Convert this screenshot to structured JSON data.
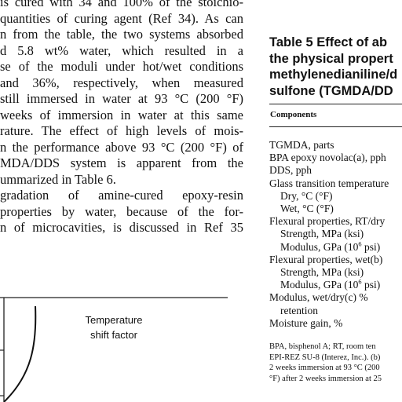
{
  "body_text": {
    "lines": [
      {
        "text": "is cured with 34 and 100% of the stoichio-",
        "justify": true
      },
      {
        "text": "quantities of curing agent (Ref 34). As can",
        "justify": true
      },
      {
        "text": "n from the table, the two systems absorbed",
        "justify": true
      },
      {
        "text": "d 5.8 wt% water, which resulted in a",
        "justify": true
      },
      {
        "text": "se of the moduli under hot/wet conditions",
        "justify": true
      },
      {
        "text": " and 36%, respectively, when measured",
        "justify": true
      },
      {
        "text": "still immersed in water at 93 °C (200 °F)",
        "justify": true
      },
      {
        "text": " weeks of immersion in water at this same",
        "justify": true
      },
      {
        "text": "rature. The effect of high levels of mois-",
        "justify": true
      },
      {
        "text": "n the performance above 93 °C (200 °F) of",
        "justify": true
      },
      {
        "text": "MDA/DDS system is apparent from the",
        "justify": true
      },
      {
        "text": "ummarized in Table 6.",
        "justify": false
      },
      {
        "text": "gradation of amine-cured epoxy-resin",
        "justify": true
      },
      {
        "text": " properties by water, because of the for-",
        "justify": true
      },
      {
        "text": "n of microcavities, is discussed in Ref 35",
        "justify": true
      }
    ]
  },
  "table": {
    "title_lines": [
      "Table 5   Effect of ab",
      "the physical propert",
      "methylenedianiline/d",
      "sulfone (TGMDA/DD"
    ],
    "header": "Components",
    "rows": [
      {
        "text": "TGMDA, parts",
        "indent": false
      },
      {
        "text": "BPA epoxy novolac(a), pph",
        "indent": false
      },
      {
        "text": "DDS, pph",
        "indent": false
      },
      {
        "text": "Glass transition temperature",
        "indent": false
      },
      {
        "text": "Dry, °C (°F)",
        "indent": true
      },
      {
        "text": "Wet, °C (°F)",
        "indent": true
      },
      {
        "text": "Flexural properties, RT/dry",
        "indent": false
      },
      {
        "text": "Strength, MPa (ksi)",
        "indent": true
      },
      {
        "text": "Modulus, GPa (10",
        "sup": "6",
        "after": " psi)",
        "indent": true
      },
      {
        "text": "Flexural properties, wet(b)",
        "indent": false
      },
      {
        "text": "Strength, MPa (ksi)",
        "indent": true
      },
      {
        "text": "Modulus, GPa (10",
        "sup": "6",
        "after": " psi)",
        "indent": true
      },
      {
        "text": "Modulus, wet/dry(c) %",
        "indent": false
      },
      {
        "text": "retention",
        "indent": true
      },
      {
        "text": "Moisture gain, %",
        "indent": false
      }
    ],
    "footnote_lines": [
      "BPA, bisphenol A; RT, room ten",
      "EPI-REZ SU-8 (Interez, Inc.). (b)",
      "2 weeks immersion at 93 °C (200",
      "°F) after 2 weeks immersion at 25"
    ]
  },
  "chart": {
    "label_lines": [
      "Temperature",
      "shift factor"
    ]
  }
}
